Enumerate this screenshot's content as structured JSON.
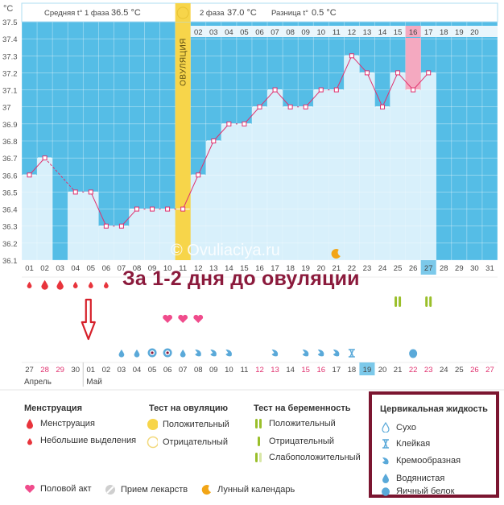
{
  "header": {
    "unit": "°C",
    "phase1_label": "Средняя t° 1 фаза",
    "phase1_value": "36.5 °C",
    "phase2_label": "2 фаза",
    "phase2_value": "37.0 °C",
    "diff_label": "Разница t°",
    "diff_value": "0.5 °C"
  },
  "ovulation_label": "ОВУЛЯЦИЯ",
  "watermark": "© Ovuliaciya.ru",
  "annotation": "За 1-2 дня до овуляции",
  "top_day_labels": [
    "02",
    "03",
    "04",
    "05",
    "06",
    "07",
    "08",
    "09",
    "10",
    "11",
    "12",
    "13",
    "14",
    "15",
    "16",
    "17",
    "18",
    "19",
    "20"
  ],
  "cycle_day_labels": [
    "01",
    "02",
    "03",
    "04",
    "05",
    "06",
    "07",
    "08",
    "09",
    "10",
    "11",
    "12",
    "13",
    "14",
    "15",
    "16",
    "17",
    "18",
    "19",
    "20",
    "21",
    "22",
    "23",
    "24",
    "25",
    "26",
    "27",
    "28",
    "29",
    "30",
    "31"
  ],
  "cycle_highlight": "27",
  "date_labels": [
    "27",
    "28",
    "29",
    "30",
    "01",
    "02",
    "03",
    "04",
    "05",
    "06",
    "07",
    "08",
    "09",
    "10",
    "11",
    "12",
    "13",
    "14",
    "15",
    "16",
    "17",
    "18",
    "19",
    "20",
    "21",
    "22",
    "23",
    "24",
    "25",
    "26",
    "27"
  ],
  "date_highlight": "23",
  "date_red_indices": [
    1,
    2,
    15,
    16,
    18,
    19,
    25,
    26,
    29,
    30
  ],
  "month_labels": {
    "april": "Апрель",
    "may": "Май"
  },
  "colors": {
    "bg_blue": "#55bde6",
    "bar_fill": "#d8f0fb",
    "line": "#e0306e",
    "ovulation": "#f7d54a",
    "day15": "#f4a9c0",
    "highlight_cell": "#7cc9ea",
    "red_date": "#e0306e",
    "drop": "#e8343c",
    "mucus": "#5aa9d9",
    "test_pos": "#9abf2a",
    "frame": "#7b1530",
    "annotation": "#8b1a3c"
  },
  "chart_data": {
    "type": "line",
    "ylabel": "°C",
    "ylim": [
      36.1,
      37.5
    ],
    "ytick_labels": [
      "37.5",
      "37.4",
      "37.3",
      "37.2",
      "37.1",
      "37",
      "36.9",
      "36.8",
      "36.7",
      "36.6",
      "36.5",
      "36.4",
      "36.3",
      "36.2",
      "36.1"
    ],
    "x": [
      1,
      2,
      3,
      4,
      5,
      6,
      7,
      8,
      9,
      10,
      11,
      12,
      13,
      14,
      15,
      16,
      17,
      18,
      19,
      20,
      21,
      22,
      23,
      24,
      25,
      26,
      27
    ],
    "temperatures": [
      36.6,
      36.7,
      null,
      36.5,
      36.5,
      36.3,
      36.3,
      36.4,
      36.4,
      36.4,
      36.4,
      36.6,
      36.8,
      36.9,
      36.9,
      37.0,
      37.1,
      37.0,
      37.0,
      37.1,
      37.1,
      37.3,
      37.2,
      37.0,
      37.2,
      37.1,
      37.2
    ],
    "ovulation_day": 11,
    "highlight_day": 26,
    "moon_day": 21
  },
  "markers": {
    "menstruation": [
      {
        "day": 1,
        "size": "small"
      },
      {
        "day": 2,
        "size": "large"
      },
      {
        "day": 3,
        "size": "large"
      },
      {
        "day": 4,
        "size": "small"
      },
      {
        "day": 5,
        "size": "small"
      },
      {
        "day": 6,
        "size": "small"
      }
    ],
    "ovulation_tests": [
      {
        "day": 25
      },
      {
        "day": 27
      }
    ],
    "hearts": [
      {
        "day": 10
      },
      {
        "day": 11
      },
      {
        "day": 12
      }
    ],
    "mucus": [
      {
        "day": 7,
        "type": "watery"
      },
      {
        "day": 8,
        "type": "watery"
      },
      {
        "day": 9,
        "type": "eggwhite"
      },
      {
        "day": 10,
        "type": "eggwhite"
      },
      {
        "day": 11,
        "type": "watery"
      },
      {
        "day": 12,
        "type": "creamy"
      },
      {
        "day": 13,
        "type": "creamy"
      },
      {
        "day": 14,
        "type": "creamy"
      },
      {
        "day": 17,
        "type": "creamy"
      },
      {
        "day": 19,
        "type": "creamy"
      },
      {
        "day": 20,
        "type": "creamy"
      },
      {
        "day": 21,
        "type": "creamy"
      },
      {
        "day": 22,
        "type": "sticky"
      },
      {
        "day": 26,
        "type": "blob"
      }
    ]
  },
  "legend": {
    "menstruation": {
      "title": "Менструация",
      "items": [
        "Менструация",
        "Небольшие выделения"
      ]
    },
    "ovulation_test": {
      "title": "Тест на овуляцию",
      "items": [
        "Положительный",
        "Отрицательный"
      ]
    },
    "pregnancy_test": {
      "title": "Тест на беременность",
      "items": [
        "Положительный",
        "Отрицательный",
        "Слабоположительный"
      ]
    },
    "cervical": {
      "title": "Цервикальная жидкость",
      "items": [
        "Сухо",
        "Клейкая",
        "Кремообразная",
        "Водянистая",
        "Яичный белок"
      ]
    },
    "bottom": [
      "Половой акт",
      "Прием лекарств",
      "Лунный календарь"
    ]
  }
}
